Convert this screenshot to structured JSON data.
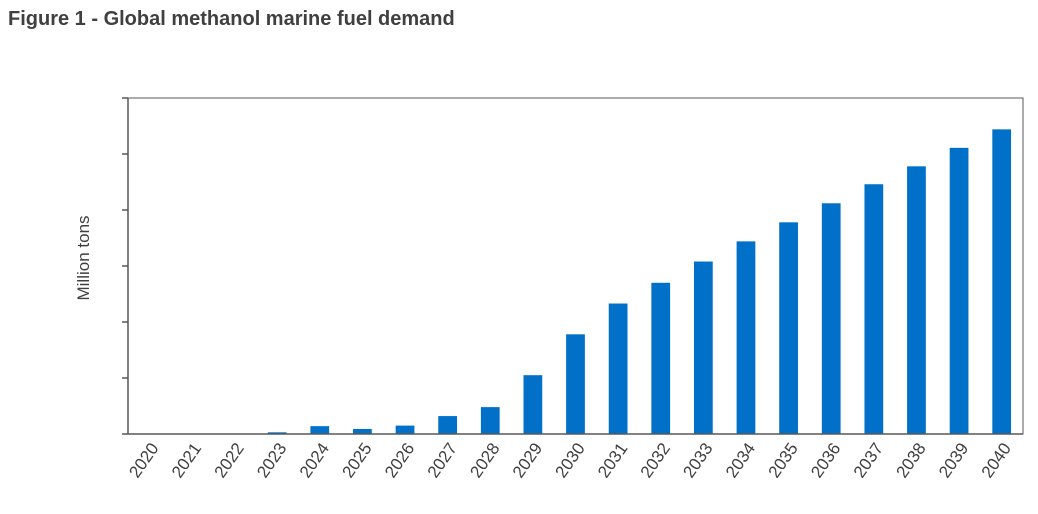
{
  "title": "Figure 1 - Global methanol marine fuel demand",
  "chart_data": {
    "type": "bar",
    "title": "Figure 1 - Global methanol marine fuel demand",
    "xlabel": "",
    "ylabel": "Million tons",
    "categories": [
      "2020",
      "2021",
      "2022",
      "2023",
      "2024",
      "2025",
      "2026",
      "2027",
      "2028",
      "2029",
      "2030",
      "2031",
      "2032",
      "2033",
      "2034",
      "2035",
      "2036",
      "2037",
      "2038",
      "2039",
      "2040"
    ],
    "series": [
      {
        "values": [
          0,
          0,
          0,
          0.03,
          0.14,
          0.09,
          0.15,
          0.32,
          0.48,
          1.05,
          1.78,
          2.33,
          2.7,
          3.08,
          3.44,
          3.78,
          4.12,
          4.46,
          4.78,
          5.11,
          5.44
        ]
      }
    ],
    "ylim": [
      0,
      6
    ],
    "y_ticks_labeled": false,
    "grid": false,
    "legend": "none",
    "bar_color": "#0070c8",
    "axis_color": "#595959"
  }
}
